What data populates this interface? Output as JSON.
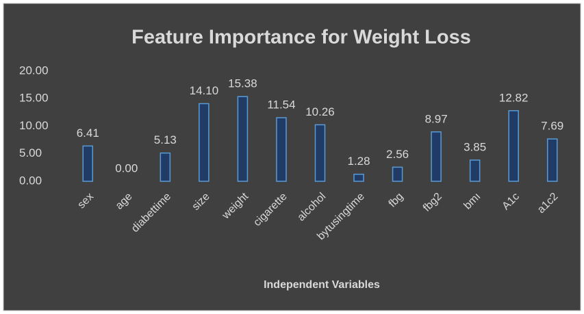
{
  "chart_data": {
    "type": "bar",
    "title": "Feature Importance for Weight Loss",
    "x_label": "Independent Variables",
    "categories": [
      "sex",
      "age",
      "diabettime",
      "size",
      "weight",
      "cigarette",
      "alcohol",
      "bytusingtime",
      "fbg",
      "fbg2",
      "bmı",
      "A1c",
      "a1c2"
    ],
    "values": [
      6.41,
      0,
      5.13,
      14.1,
      15.38,
      11.54,
      10.26,
      1.28,
      2.56,
      8.97,
      3.85,
      12.82,
      7.69
    ],
    "value_labels": [
      "6.41",
      "0.00",
      "5.13",
      "14.10",
      "15.38",
      "11.54",
      "10.26",
      "1.28",
      "2.56",
      "8.97",
      "3.85",
      "12.82",
      "7.69"
    ],
    "color": "#1f3b66",
    "ylim": [
      0,
      20
    ],
    "yticks": [
      {
        "value": 0,
        "label": "0.00"
      },
      {
        "value": 5,
        "label": "5.00"
      },
      {
        "value": 10,
        "label": "10.00"
      },
      {
        "value": 15,
        "label": "15.00"
      },
      {
        "value": 20,
        "label": "20.00"
      }
    ],
    "grid": false
  }
}
